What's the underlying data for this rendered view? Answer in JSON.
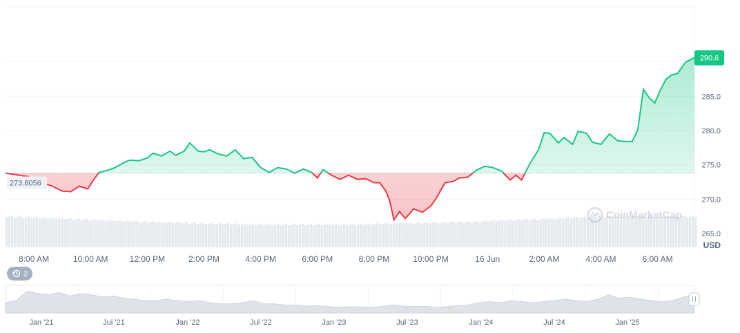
{
  "colors": {
    "up": "#16c784",
    "down": "#ea3943",
    "axis_text": "#58667e",
    "grid": "#eff2f5",
    "baseline": "#a6b0c3",
    "volume": "#e6e9ee",
    "navigator": "#dfe3e9",
    "price_tag_text": "#ffffff",
    "baseline_tag_bg": "#eef1f6",
    "badge_bg": "#a6b0c3"
  },
  "watermark": {
    "text": "CoinMarketCap",
    "icon": "coinmarketcap-logo-icon"
  },
  "badge": {
    "icon": "history-icon",
    "label": "2"
  },
  "chart_data": {
    "type": "area",
    "baseline_value": 273.8056,
    "baseline_label": "273.8056",
    "current_price": 290.6,
    "current_price_label": "290.6",
    "y_range": [
      263.0,
      298.0
    ],
    "y_ticks": [
      "265.0",
      "270.0",
      "275.0",
      "280.0",
      "285.0"
    ],
    "y_tick_values": [
      265,
      270,
      275,
      280,
      285
    ],
    "currency_label": "USD",
    "x_range_hours": [
      0,
      24.3
    ],
    "x_ticks": [
      {
        "label": "8:00 AM",
        "h": 1
      },
      {
        "label": "10:00 AM",
        "h": 3
      },
      {
        "label": "12:00 PM",
        "h": 5
      },
      {
        "label": "2:00 PM",
        "h": 7
      },
      {
        "label": "4:00 PM",
        "h": 9
      },
      {
        "label": "6:00 PM",
        "h": 11
      },
      {
        "label": "8:00 PM",
        "h": 13
      },
      {
        "label": "10:00 PM",
        "h": 15
      },
      {
        "label": "16 Jun",
        "h": 17
      },
      {
        "label": "2:00 AM",
        "h": 19
      },
      {
        "label": "4:00 AM",
        "h": 21
      },
      {
        "label": "6:00 AM",
        "h": 23
      }
    ],
    "series": [
      {
        "x": [
          0,
          0.8,
          1.2,
          1.6,
          2.0,
          2.3,
          2.6,
          2.9,
          3.1,
          3.3,
          3.6,
          3.8,
          4.0,
          4.2,
          4.4,
          4.7,
          5.0,
          5.2,
          5.5,
          5.8,
          6.0,
          6.3,
          6.5,
          6.8,
          7.0,
          7.2,
          7.5,
          7.8,
          8.1,
          8.4,
          8.7,
          9.0,
          9.3,
          9.6,
          9.9,
          10.2,
          10.5,
          10.8,
          11.0,
          11.2,
          11.5,
          11.8,
          12.1,
          12.4,
          12.7,
          13.0,
          13.2,
          13.4,
          13.55,
          13.7,
          13.9,
          14.1,
          14.4,
          14.7,
          15.0,
          15.2,
          15.5,
          15.8,
          16.0,
          16.3,
          16.6,
          16.9,
          17.2,
          17.5,
          17.8,
          18.0,
          18.2,
          18.5,
          18.8,
          19.0,
          19.2,
          19.5,
          19.7,
          20.0,
          20.2,
          20.5,
          20.7,
          21.0,
          21.3,
          21.6,
          21.9,
          22.1,
          22.3,
          22.5,
          22.7,
          22.9,
          23.1,
          23.3,
          23.5,
          23.7,
          24.0,
          24.3
        ],
        "y": [
          273.8,
          273.3,
          272.4,
          272.0,
          271.2,
          271.1,
          271.9,
          271.5,
          272.8,
          273.9,
          274.2,
          274.5,
          274.9,
          275.4,
          275.7,
          275.6,
          276.0,
          276.7,
          276.3,
          277.0,
          276.4,
          277.0,
          278.2,
          277.0,
          276.9,
          277.2,
          276.6,
          276.3,
          277.2,
          275.9,
          276.1,
          274.6,
          273.9,
          274.6,
          274.4,
          273.8,
          274.4,
          273.9,
          273.1,
          274.3,
          273.5,
          272.9,
          273.5,
          272.9,
          273.0,
          272.4,
          272.4,
          271.3,
          269.8,
          267.0,
          268.2,
          267.2,
          268.6,
          268.1,
          269.0,
          270.2,
          272.4,
          272.6,
          273.1,
          273.2,
          274.2,
          274.8,
          274.6,
          274.1,
          272.8,
          273.5,
          272.8,
          275.2,
          277.2,
          279.7,
          279.6,
          278.2,
          279.0,
          278.0,
          279.9,
          279.6,
          278.3,
          278.0,
          279.5,
          278.5,
          278.4,
          278.4,
          280.1,
          286.0,
          284.8,
          284.0,
          285.9,
          287.5,
          288.1,
          288.3,
          290.0,
          290.6
        ]
      }
    ]
  },
  "navigator": {
    "x_ticks": [
      "Jan '21",
      "Jul '21",
      "Jan '22",
      "Jul '22",
      "Jan '23",
      "Jul '23",
      "Jan '24",
      "Jul '24",
      "Jan '25"
    ],
    "profile": [
      0.45,
      0.55,
      0.95,
      0.85,
      0.8,
      0.9,
      0.75,
      0.85,
      0.8,
      0.7,
      0.75,
      0.65,
      0.6,
      0.55,
      0.55,
      0.6,
      0.55,
      0.5,
      0.55,
      0.45,
      0.4,
      0.4,
      0.45,
      0.55,
      0.4,
      0.4,
      0.35,
      0.35,
      0.3,
      0.32,
      0.28,
      0.25,
      0.28,
      0.27,
      0.25,
      0.28,
      0.35,
      0.3,
      0.28,
      0.3,
      0.25,
      0.28,
      0.32,
      0.35,
      0.45,
      0.5,
      0.45,
      0.55,
      0.5,
      0.45,
      0.5,
      0.55,
      0.6,
      0.55,
      0.5,
      0.6,
      0.8,
      0.65,
      0.7,
      0.6,
      0.55,
      0.5,
      0.55,
      0.7,
      0.8
    ]
  }
}
